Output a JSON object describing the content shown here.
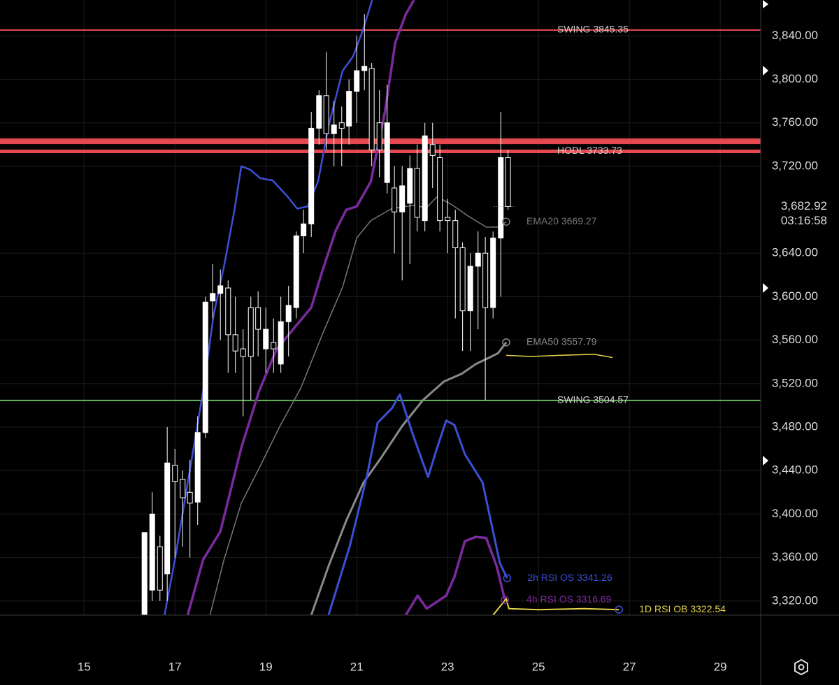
{
  "chart_data": {
    "type": "candlestick",
    "xlim": [
      13.15,
      29.89
    ],
    "ylim": [
      3307,
      3873
    ],
    "xticks": [
      15,
      17,
      19,
      21,
      23,
      25,
      27,
      29
    ],
    "yticks": [
      {
        "value": 3320,
        "label": "3,320.00"
      },
      {
        "value": 3360,
        "label": "3,360.00"
      },
      {
        "value": 3400,
        "label": "3,400.00"
      },
      {
        "value": 3440,
        "label": "3,440.00"
      },
      {
        "value": 3480,
        "label": "3,480.00"
      },
      {
        "value": 3520,
        "label": "3,520.00"
      },
      {
        "value": 3560,
        "label": "3,560.00"
      },
      {
        "value": 3600,
        "label": "3,600.00"
      },
      {
        "value": 3640,
        "label": "3,640.00"
      },
      {
        "value": 3720,
        "label": "3,720.00"
      },
      {
        "value": 3760,
        "label": "3,760.00"
      },
      {
        "value": 3800,
        "label": "3,800.00"
      },
      {
        "value": 3840,
        "label": "3,840.00"
      }
    ],
    "price_marker": {
      "value": 3682.92,
      "label": "3,682.92",
      "countdown": "03:16:58"
    },
    "up_color": "#ffffff",
    "down_color": "#000000",
    "x": [
      16.33,
      16.5,
      16.67,
      16.83,
      17,
      17.17,
      17.33,
      17.5,
      17.67,
      17.83,
      18,
      18.17,
      18.33,
      18.5,
      18.67,
      18.83,
      19,
      19.17,
      19.33,
      19.5,
      19.67,
      19.83,
      20,
      20.17,
      20.33,
      20.5,
      20.67,
      20.83,
      21,
      21.17,
      21.33,
      21.5,
      21.67,
      21.83,
      22,
      22.17,
      22.33,
      22.5,
      22.67,
      22.83,
      23,
      23.17,
      23.33,
      23.5,
      23.67,
      23.83,
      24,
      24.17,
      24.33
    ],
    "open": [
      3305,
      3330,
      3370,
      3345,
      3445,
      3432,
      3420,
      3411,
      3475,
      3596,
      3603,
      3608,
      3565,
      3552,
      3590,
      3590,
      3552,
      3558,
      3538,
      3577,
      3590,
      3656,
      3667,
      3755,
      3785,
      3750,
      3760,
      3757,
      3789,
      3808,
      3810,
      3760,
      3705,
      3700,
      3678,
      3686,
      3718,
      3670,
      3740,
      3728,
      3673,
      3670,
      3645,
      3587,
      3628,
      3640,
      3590,
      3654,
      3728
    ],
    "high": [
      3383,
      3420,
      3380,
      3480,
      3460,
      3440,
      3450,
      3490,
      3600,
      3630,
      3625,
      3615,
      3600,
      3570,
      3600,
      3605,
      3590,
      3580,
      3600,
      3610,
      3660,
      3680,
      3770,
      3790,
      3825,
      3780,
      3775,
      3800,
      3840,
      3860,
      3815,
      3790,
      3795,
      3720,
      3720,
      3730,
      3740,
      3760,
      3760,
      3740,
      3690,
      3680,
      3650,
      3640,
      3660,
      3655,
      3660,
      3770,
      3735
    ],
    "low": [
      3300,
      3320,
      3320,
      3320,
      3360,
      3370,
      3360,
      3390,
      3470,
      3580,
      3560,
      3530,
      3530,
      3490,
      3505,
      3545,
      3530,
      3530,
      3530,
      3545,
      3580,
      3640,
      3655,
      3740,
      3735,
      3720,
      3720,
      3740,
      3760,
      3790,
      3720,
      3710,
      3695,
      3640,
      3615,
      3630,
      3660,
      3660,
      3700,
      3660,
      3640,
      3580,
      3550,
      3550,
      3570,
      3505,
      3580,
      3600,
      3680
    ],
    "close": [
      3383,
      3400,
      3330,
      3447,
      3430,
      3415,
      3410,
      3475,
      3595,
      3603,
      3610,
      3565,
      3550,
      3545,
      3545,
      3570,
      3570,
      3552,
      3577,
      3592,
      3656,
      3667,
      3755,
      3785,
      3750,
      3758,
      3755,
      3789,
      3808,
      3812,
      3735,
      3735,
      3760,
      3678,
      3702,
      3718,
      3673,
      3748,
      3730,
      3670,
      3670,
      3645,
      3587,
      3628,
      3640,
      3590,
      3654,
      3728,
      3683
    ],
    "levels": [
      {
        "label": "SWING 3845.35",
        "value": 3845.35,
        "color": "#e5484f",
        "width": 2
      },
      {
        "value": 3743,
        "color": "#e5484f",
        "width": 8
      },
      {
        "label": "HODL 3733.73",
        "value": 3733.73,
        "color": "#e5484f",
        "width": 5
      },
      {
        "label": "SWING 3504.57",
        "value": 3504.57,
        "color": "#66b85c",
        "width": 2
      }
    ],
    "series": [
      {
        "color": "#3d4fd6",
        "width": 2.5,
        "x": [
          16.77,
          17.0,
          17.31,
          17.62,
          17.85,
          18.08,
          18.31,
          18.46,
          18.65,
          18.88,
          19.15,
          19.46,
          19.69,
          19.92,
          20.15,
          20.38,
          20.69,
          20.92,
          21.15,
          21.34
        ],
        "values": [
          3307,
          3358,
          3436,
          3513,
          3583,
          3628,
          3680,
          3720,
          3717,
          3709,
          3707,
          3693,
          3681,
          3683,
          3706,
          3757,
          3808,
          3821,
          3847,
          3873
        ]
      },
      {
        "color": "#7a2a9c",
        "width": 3.5,
        "x": [
          17.28,
          17.62,
          18.0,
          18.46,
          18.85,
          19.23,
          19.62,
          20.0,
          20.23,
          20.54,
          20.77,
          21.0,
          21.31,
          21.62,
          21.85,
          22.08,
          22.26
        ],
        "values": [
          3307,
          3358,
          3384,
          3461,
          3513,
          3551,
          3571,
          3590,
          3622,
          3661,
          3680,
          3683,
          3706,
          3770,
          3834,
          3860,
          3873
        ]
      },
      {
        "name": "EMA20 3669.27",
        "color": "#777777",
        "width": 1.5,
        "x": [
          17.77,
          18.08,
          18.46,
          18.85,
          19.31,
          19.77,
          20.23,
          20.69,
          21.0,
          21.31,
          21.77,
          22.23,
          22.54,
          22.77,
          23.08,
          23.46,
          23.85,
          24.11,
          24.29
        ],
        "values": [
          3307,
          3358,
          3410,
          3442,
          3481,
          3516,
          3564,
          3609,
          3654,
          3670,
          3681,
          3684,
          3682,
          3692,
          3685,
          3674,
          3664,
          3664,
          3669
        ]
      },
      {
        "name": "EMA50 3557.79",
        "color": "#8a8a8a",
        "width": 3,
        "x": [
          20.0,
          20.38,
          20.77,
          21.15,
          21.54,
          22.0,
          22.46,
          22.92,
          23.31,
          23.62,
          23.92,
          24.11,
          24.29
        ],
        "values": [
          3307,
          3352,
          3394,
          3429,
          3452,
          3481,
          3505,
          3522,
          3529,
          3538,
          3544,
          3548,
          3558
        ]
      },
      {
        "name": "2h RSI OS 3341.26",
        "color": "#3d4fd6",
        "width": 3,
        "x": [
          20.38,
          20.85,
          21.23,
          21.46,
          21.77,
          21.95,
          22.23,
          22.57,
          22.77,
          22.97,
          23.15,
          23.38,
          23.77,
          24.15,
          24.31
        ],
        "values": [
          3307,
          3371,
          3436,
          3484,
          3497,
          3510,
          3474,
          3434,
          3461,
          3486,
          3482,
          3455,
          3429,
          3355,
          3341
        ]
      },
      {
        "name": "4h RSI OS 3316.69",
        "color": "#7a2a9c",
        "width": 3.5,
        "x": [
          22.08,
          22.34,
          22.54,
          22.97,
          23.15,
          23.38,
          23.62,
          23.85,
          24.08,
          24.26
        ],
        "values": [
          3307,
          3325,
          3313,
          3325,
          3342,
          3375,
          3379,
          3378,
          3352,
          3321
        ]
      },
      {
        "color": "#e6d44a",
        "width": 1.5,
        "x": [
          24.29,
          24.85,
          25.46,
          26.23,
          26.63
        ],
        "values": [
          3546,
          3545,
          3546,
          3547,
          3544
        ]
      },
      {
        "name": "1D RSI OB 3322.54",
        "color": "#e6d44a",
        "width": 2,
        "x": [
          24.0,
          24.29,
          24.35,
          25.0,
          26.0,
          26.77
        ],
        "values": [
          3307,
          3322,
          3313,
          3312,
          3313,
          3312
        ]
      }
    ]
  }
}
